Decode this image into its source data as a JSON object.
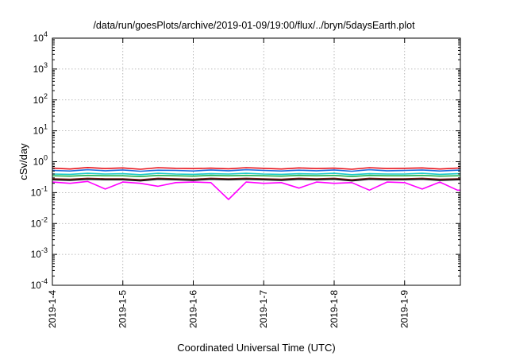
{
  "chart_data": {
    "type": "line",
    "title": "/data/run/goesPlots/archive/2019-01-09/19:00/flux/../bryn/5daysEarth.plot",
    "xlabel": "Coordinated Universal Time (UTC)",
    "ylabel": "cSv/day",
    "yscale": "log",
    "ylim": [
      0.0001,
      10000
    ],
    "xlim": [
      "2019-01-04T00:00",
      "2019-01-09T19:00"
    ],
    "x_ticks": [
      "2019-1-4",
      "2019-1-5",
      "2019-1-6",
      "2019-1-7",
      "2019-1-8",
      "2019-1-9"
    ],
    "y_ticks": [
      {
        "base": "10",
        "exp": "-4",
        "value": 0.0001
      },
      {
        "base": "10",
        "exp": "-3",
        "value": 0.001
      },
      {
        "base": "10",
        "exp": "-2",
        "value": 0.01
      },
      {
        "base": "10",
        "exp": "-1",
        "value": 0.1
      },
      {
        "base": "10",
        "exp": "0",
        "value": 1
      },
      {
        "base": "10",
        "exp": "1",
        "value": 10
      },
      {
        "base": "10",
        "exp": "2",
        "value": 100
      },
      {
        "base": "10",
        "exp": "3",
        "value": 1000
      },
      {
        "base": "10",
        "exp": "4",
        "value": 10000
      }
    ],
    "grid": true,
    "legend": "none",
    "x_hours": [
      0,
      6,
      12,
      18,
      24,
      30,
      36,
      42,
      48,
      54,
      60,
      66,
      72,
      78,
      84,
      90,
      96,
      102,
      108,
      114,
      120,
      126,
      132,
      138
    ],
    "series": [
      {
        "color": "#e8141c",
        "values": [
          0.62,
          0.58,
          0.65,
          0.6,
          0.63,
          0.57,
          0.64,
          0.61,
          0.6,
          0.62,
          0.59,
          0.64,
          0.61,
          0.58,
          0.63,
          0.6,
          0.62,
          0.57,
          0.64,
          0.6,
          0.61,
          0.63,
          0.58,
          0.62
        ]
      },
      {
        "color": "#1f6fe0",
        "values": [
          0.52,
          0.5,
          0.55,
          0.51,
          0.54,
          0.49,
          0.53,
          0.52,
          0.5,
          0.54,
          0.51,
          0.55,
          0.52,
          0.5,
          0.53,
          0.51,
          0.54,
          0.49,
          0.55,
          0.51,
          0.52,
          0.54,
          0.5,
          0.53
        ]
      },
      {
        "color": "#18c8c8",
        "values": [
          0.4,
          0.39,
          0.42,
          0.4,
          0.41,
          0.38,
          0.42,
          0.4,
          0.39,
          0.41,
          0.4,
          0.42,
          0.4,
          0.39,
          0.41,
          0.4,
          0.42,
          0.38,
          0.41,
          0.4,
          0.4,
          0.42,
          0.39,
          0.41
        ]
      },
      {
        "color": "#22b24c",
        "values": [
          0.35,
          0.34,
          0.36,
          0.35,
          0.35,
          0.33,
          0.36,
          0.35,
          0.34,
          0.36,
          0.35,
          0.36,
          0.35,
          0.34,
          0.36,
          0.35,
          0.36,
          0.33,
          0.36,
          0.35,
          0.35,
          0.36,
          0.34,
          0.35
        ]
      },
      {
        "color": "#7a1a1a",
        "values": [
          0.28,
          0.27,
          0.29,
          0.28,
          0.28,
          0.26,
          0.29,
          0.28,
          0.27,
          0.29,
          0.28,
          0.29,
          0.28,
          0.27,
          0.29,
          0.28,
          0.29,
          0.26,
          0.29,
          0.28,
          0.28,
          0.29,
          0.27,
          0.28
        ]
      },
      {
        "color": "#111111",
        "values": [
          0.26,
          0.25,
          0.27,
          0.26,
          0.26,
          0.24,
          0.27,
          0.26,
          0.25,
          0.27,
          0.26,
          0.27,
          0.26,
          0.25,
          0.27,
          0.26,
          0.27,
          0.24,
          0.27,
          0.26,
          0.26,
          0.27,
          0.25,
          0.26
        ]
      },
      {
        "color": "#ff00ff",
        "values": [
          0.22,
          0.2,
          0.23,
          0.13,
          0.22,
          0.2,
          0.16,
          0.21,
          0.22,
          0.21,
          0.06,
          0.22,
          0.2,
          0.21,
          0.14,
          0.22,
          0.2,
          0.21,
          0.12,
          0.22,
          0.21,
          0.13,
          0.22,
          0.12
        ]
      }
    ]
  }
}
